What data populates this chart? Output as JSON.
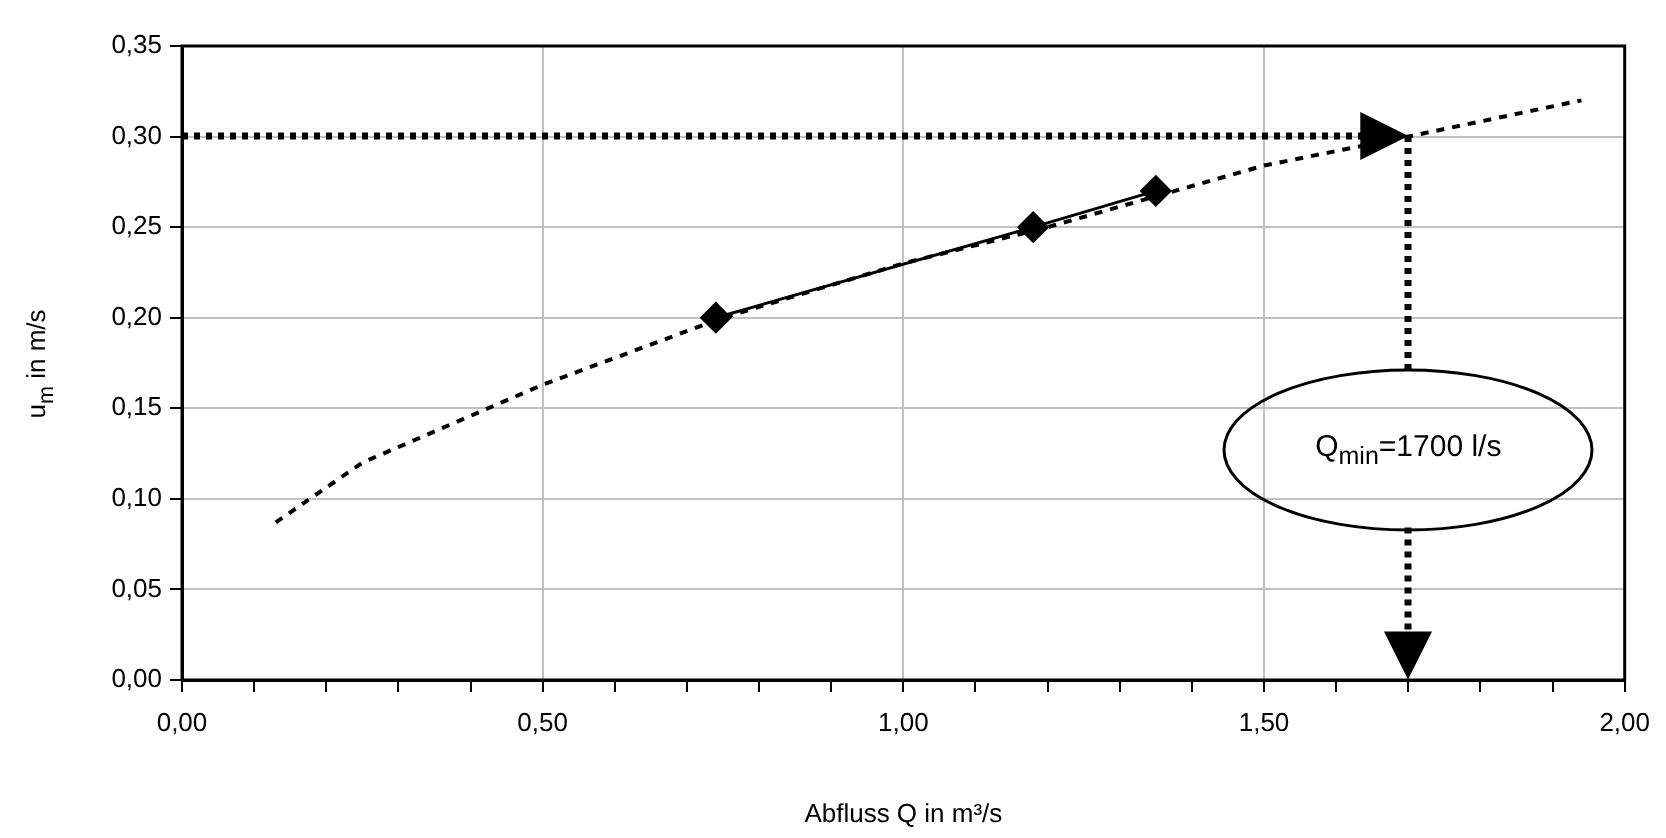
{
  "chart_data": {
    "type": "line",
    "xlabel": "Abfluss Q in m³/s",
    "ylabel": "u$_{m}$ in m/s",
    "xlim": [
      0,
      2
    ],
    "xticks": [
      {
        "value": 0,
        "label": "0,00"
      },
      {
        "value": 0.1,
        "label": null
      },
      {
        "value": 0.2,
        "label": null
      },
      {
        "value": 0.3,
        "label": null
      },
      {
        "value": 0.4,
        "label": null
      },
      {
        "value": 0.5,
        "label": "0,50"
      },
      {
        "value": 0.6,
        "label": null
      },
      {
        "value": 0.7,
        "label": null
      },
      {
        "value": 0.8,
        "label": null
      },
      {
        "value": 0.9,
        "label": null
      },
      {
        "value": 1,
        "label": "1,00"
      },
      {
        "value": 1.1,
        "label": null
      },
      {
        "value": 1.2,
        "label": null
      },
      {
        "value": 1.3,
        "label": null
      },
      {
        "value": 1.4,
        "label": null
      },
      {
        "value": 1.5,
        "label": "1,50"
      },
      {
        "value": 1.6,
        "label": null
      },
      {
        "value": 1.7,
        "label": null
      },
      {
        "value": 1.8,
        "label": null
      },
      {
        "value": 1.9,
        "label": null
      },
      {
        "value": 2,
        "label": "2,00"
      }
    ],
    "ylim": [
      0,
      0.35
    ],
    "yticks": [
      {
        "value": 0,
        "label": "0,00"
      },
      {
        "value": 0.05,
        "label": "0,05"
      },
      {
        "value": 0.1,
        "label": "0,10"
      },
      {
        "value": 0.15,
        "label": "0,15"
      },
      {
        "value": 0.2,
        "label": "0,20"
      },
      {
        "value": 0.25,
        "label": "0,25"
      },
      {
        "value": 0.3,
        "label": "0,30"
      },
      {
        "value": 0.35,
        "label": "0,35"
      }
    ],
    "grid": true,
    "legend": false,
    "series": [
      {
        "color": "#000000",
        "x": [
          0.13,
          0.25,
          0.5,
          0.75,
          1.0,
          1.2,
          1.5,
          1.7,
          1.94
        ],
        "values": [
          0.087,
          0.12,
          0.163,
          0.2,
          0.23,
          0.25,
          0.284,
          0.3,
          0.32
        ],
        "line_style": "dashed",
        "marker": "none"
      },
      {
        "color": "#000000",
        "x": [
          0.74,
          1.18,
          1.35
        ],
        "values": [
          0.2,
          0.25,
          0.27
        ],
        "line_style": "solid",
        "marker": "diamond"
      }
    ],
    "ref_lines": [
      {
        "axis": "y",
        "value": 0.3,
        "color": "#000000",
        "line_style": "dotted"
      },
      {
        "axis": "x",
        "value": 1.7,
        "color": "#000000",
        "line_style": "dotted"
      }
    ],
    "annotations": [
      "Q$_{min}$=1700 l/s"
    ]
  }
}
